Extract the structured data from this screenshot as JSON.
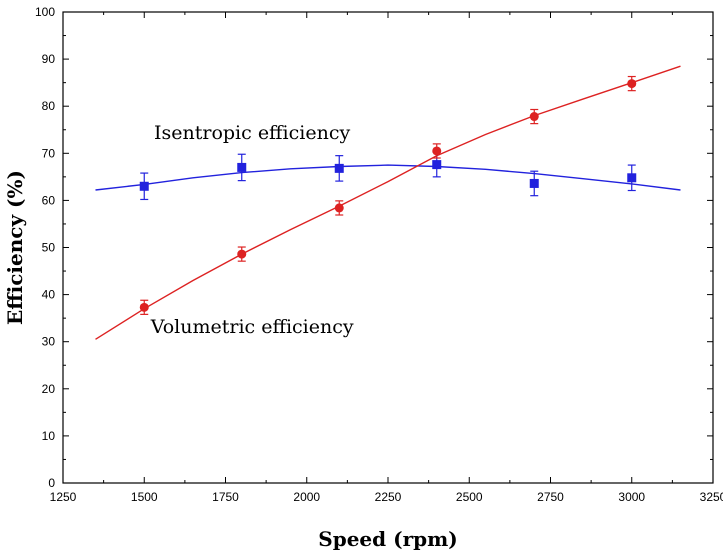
{
  "chart_data": {
    "type": "scatter",
    "title": "",
    "xlabel": "Speed (rpm)",
    "ylabel": "Efficiency (%)",
    "xlim": [
      1250,
      3250
    ],
    "ylim": [
      0,
      100
    ],
    "xticks": [
      1250,
      1500,
      1750,
      2000,
      2250,
      2500,
      2750,
      3000,
      3250
    ],
    "yticks": [
      0,
      10,
      20,
      30,
      40,
      50,
      60,
      70,
      80,
      90,
      100
    ],
    "xtick_labels": [
      "1250",
      "1500",
      "1750",
      "2000",
      "2250",
      "2500",
      "2750",
      "3000",
      "3250"
    ],
    "ytick_labels": [
      "0",
      "10",
      "20",
      "30",
      "40",
      "50",
      "60",
      "70",
      "80",
      "90",
      "100"
    ],
    "grid": false,
    "series": [
      {
        "name": "Isentropic efficiency",
        "color": "#2222dd",
        "marker": "square",
        "x": [
          1500,
          1800,
          2100,
          2400,
          2700,
          3000
        ],
        "y": [
          63,
          67,
          66.8,
          67.6,
          63.6,
          64.8
        ],
        "err": [
          2.8,
          2.8,
          2.7,
          2.6,
          2.6,
          2.7
        ],
        "fit": [
          [
            1350,
            62.2
          ],
          [
            1500,
            63.4
          ],
          [
            1650,
            64.8
          ],
          [
            1800,
            65.9
          ],
          [
            1950,
            66.7
          ],
          [
            2100,
            67.2
          ],
          [
            2250,
            67.5
          ],
          [
            2400,
            67.2
          ],
          [
            2550,
            66.6
          ],
          [
            2700,
            65.7
          ],
          [
            2850,
            64.6
          ],
          [
            3000,
            63.5
          ],
          [
            3150,
            62.2
          ]
        ]
      },
      {
        "name": "Volumetric efficiency",
        "color": "#dd2222",
        "marker": "circle",
        "x": [
          1500,
          1800,
          2100,
          2400,
          2700,
          3000
        ],
        "y": [
          37.3,
          48.6,
          58.4,
          70.5,
          77.8,
          84.8
        ],
        "err": [
          1.5,
          1.5,
          1.5,
          1.5,
          1.5,
          1.5
        ],
        "fit": [
          [
            1350,
            30.5
          ],
          [
            1500,
            37
          ],
          [
            1650,
            43
          ],
          [
            1800,
            48.6
          ],
          [
            1950,
            53.8
          ],
          [
            2100,
            58.8
          ],
          [
            2250,
            64
          ],
          [
            2400,
            69.5
          ],
          [
            2550,
            74
          ],
          [
            2700,
            78
          ],
          [
            2850,
            81.5
          ],
          [
            3000,
            85
          ],
          [
            3150,
            88.5
          ]
        ]
      }
    ],
    "annotations": [
      {
        "text": "Isentropic efficiency",
        "x": 1530,
        "y": 73
      },
      {
        "text": "Volumetric efficiency",
        "x": 1520,
        "y": 31.8
      }
    ]
  }
}
